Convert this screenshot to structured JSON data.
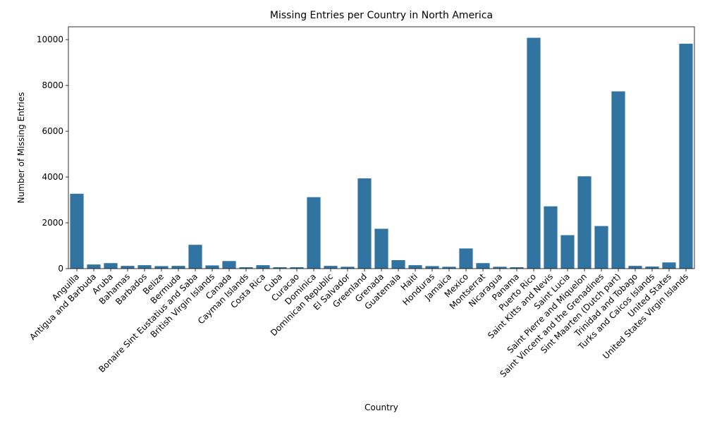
{
  "chart_data": {
    "type": "bar",
    "title": "Missing Entries per Country in North America",
    "xlabel": "Country",
    "ylabel": "Number of Missing Entries",
    "ylim": [
      0,
      10560
    ],
    "yticks": [
      0,
      2000,
      4000,
      6000,
      8000,
      10000
    ],
    "grid": false,
    "bar_color": "#3274a1",
    "categories": [
      "Anguilla",
      "Antigua and Barbuda",
      "Aruba",
      "Bahamas",
      "Barbados",
      "Belize",
      "Bermuda",
      "Bonaire Sint Eustatius and Saba",
      "British Virgin Islands",
      "Canada",
      "Cayman Islands",
      "Costa Rica",
      "Cuba",
      "Curacao",
      "Dominica",
      "Dominican Republic",
      "El Salvador",
      "Greenland",
      "Grenada",
      "Guatemala",
      "Haiti",
      "Honduras",
      "Jamaica",
      "Mexico",
      "Montserrat",
      "Nicaragua",
      "Panama",
      "Puerto Rico",
      "Saint Kitts and Nevis",
      "Saint Lucia",
      "Saint Pierre and Miquelon",
      "Saint Vincent and the Grenadines",
      "Sint Maarten (Dutch part)",
      "Trinidad and Tobago",
      "Turks and Caicos Islands",
      "United States",
      "United States Virgin Islands"
    ],
    "values": [
      3270,
      180,
      240,
      120,
      150,
      110,
      120,
      1040,
      140,
      330,
      60,
      150,
      60,
      60,
      3120,
      120,
      80,
      3940,
      1740,
      370,
      150,
      110,
      80,
      880,
      240,
      80,
      60,
      10080,
      2720,
      1460,
      4030,
      1860,
      7740,
      120,
      90,
      270,
      9820
    ]
  }
}
